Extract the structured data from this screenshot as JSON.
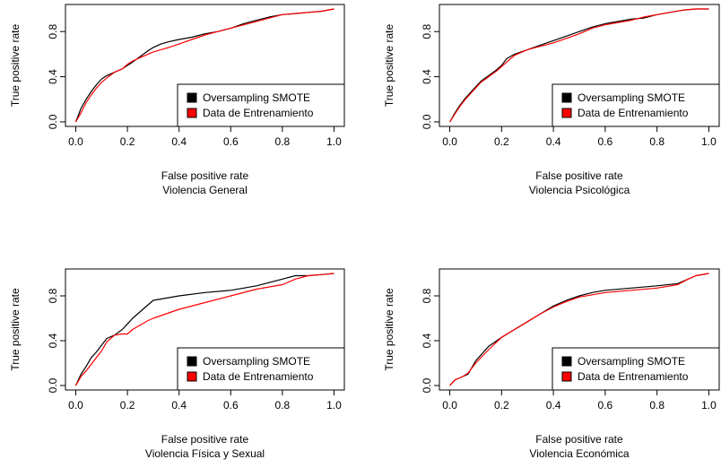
{
  "chart_data": [
    {
      "type": "line",
      "title": "Violencia General",
      "xlabel": "False positive rate",
      "ylabel": "True positive rate",
      "xlim": [
        0,
        1
      ],
      "ylim": [
        0,
        1
      ],
      "x_ticks": [
        "0.0",
        "0.2",
        "0.4",
        "0.6",
        "0.8",
        "1.0"
      ],
      "y_ticks": [
        "0.0",
        "0.4",
        "0.8"
      ],
      "grid": false,
      "legend_position": "bottom-right",
      "series": [
        {
          "name": "Oversampling SMOTE",
          "color": "#000000",
          "x": [
            0,
            0.02,
            0.04,
            0.06,
            0.08,
            0.1,
            0.12,
            0.15,
            0.18,
            0.2,
            0.22,
            0.25,
            0.28,
            0.3,
            0.33,
            0.36,
            0.4,
            0.45,
            0.5,
            0.55,
            0.6,
            0.65,
            0.7,
            0.75,
            0.8,
            0.85,
            0.9,
            0.95,
            1.0
          ],
          "y": [
            0,
            0.12,
            0.2,
            0.27,
            0.33,
            0.38,
            0.41,
            0.44,
            0.47,
            0.5,
            0.53,
            0.58,
            0.63,
            0.66,
            0.69,
            0.71,
            0.73,
            0.75,
            0.78,
            0.8,
            0.83,
            0.87,
            0.9,
            0.93,
            0.95,
            0.96,
            0.97,
            0.98,
            1.0
          ]
        },
        {
          "name": "Data de Entrenamiento",
          "color": "#ff0000",
          "x": [
            0,
            0.02,
            0.04,
            0.06,
            0.08,
            0.1,
            0.12,
            0.15,
            0.18,
            0.2,
            0.22,
            0.25,
            0.28,
            0.3,
            0.33,
            0.36,
            0.4,
            0.45,
            0.5,
            0.55,
            0.6,
            0.65,
            0.7,
            0.75,
            0.8,
            0.85,
            0.9,
            0.95,
            1.0
          ],
          "y": [
            0,
            0.08,
            0.17,
            0.24,
            0.3,
            0.35,
            0.39,
            0.44,
            0.47,
            0.51,
            0.54,
            0.57,
            0.6,
            0.62,
            0.64,
            0.66,
            0.69,
            0.73,
            0.77,
            0.8,
            0.83,
            0.86,
            0.89,
            0.92,
            0.95,
            0.96,
            0.97,
            0.98,
            1.0
          ]
        }
      ]
    },
    {
      "type": "line",
      "title": "Violencia Psicológica",
      "xlabel": "False positive rate",
      "ylabel": "True positive rate",
      "xlim": [
        0,
        1
      ],
      "ylim": [
        0,
        1
      ],
      "x_ticks": [
        "0.0",
        "0.2",
        "0.4",
        "0.6",
        "0.8",
        "1.0"
      ],
      "y_ticks": [
        "0.0",
        "0.4",
        "0.8"
      ],
      "grid": false,
      "legend_position": "bottom-right",
      "series": [
        {
          "name": "Oversampling SMOTE",
          "color": "#000000",
          "x": [
            0,
            0.02,
            0.04,
            0.06,
            0.08,
            0.1,
            0.12,
            0.15,
            0.18,
            0.2,
            0.22,
            0.25,
            0.3,
            0.35,
            0.4,
            0.45,
            0.5,
            0.55,
            0.6,
            0.65,
            0.7,
            0.75,
            0.8,
            0.85,
            0.9,
            0.95,
            1.0
          ],
          "y": [
            0,
            0.08,
            0.15,
            0.21,
            0.26,
            0.31,
            0.36,
            0.41,
            0.46,
            0.5,
            0.56,
            0.6,
            0.64,
            0.68,
            0.72,
            0.76,
            0.8,
            0.84,
            0.87,
            0.89,
            0.91,
            0.92,
            0.95,
            0.97,
            0.99,
            1.0,
            1.0
          ]
        },
        {
          "name": "Data de Entrenamiento",
          "color": "#ff0000",
          "x": [
            0,
            0.02,
            0.04,
            0.06,
            0.08,
            0.1,
            0.12,
            0.15,
            0.18,
            0.2,
            0.22,
            0.25,
            0.3,
            0.35,
            0.4,
            0.45,
            0.5,
            0.55,
            0.6,
            0.65,
            0.7,
            0.75,
            0.8,
            0.85,
            0.9,
            0.95,
            1.0
          ],
          "y": [
            0,
            0.07,
            0.14,
            0.2,
            0.25,
            0.3,
            0.35,
            0.4,
            0.45,
            0.49,
            0.53,
            0.59,
            0.64,
            0.67,
            0.7,
            0.74,
            0.78,
            0.83,
            0.86,
            0.88,
            0.9,
            0.93,
            0.95,
            0.97,
            0.99,
            1.0,
            1.0
          ]
        }
      ]
    },
    {
      "type": "line",
      "title": "Violencia Física y Sexual",
      "xlabel": "False positive rate",
      "ylabel": "True positive rate",
      "xlim": [
        0,
        1
      ],
      "ylim": [
        0,
        1
      ],
      "x_ticks": [
        "0.0",
        "0.2",
        "0.4",
        "0.6",
        "0.8",
        "1.0"
      ],
      "y_ticks": [
        "0.0",
        "0.4",
        "0.8"
      ],
      "grid": false,
      "legend_position": "bottom-right",
      "series": [
        {
          "name": "Oversampling SMOTE",
          "color": "#000000",
          "x": [
            0,
            0.02,
            0.04,
            0.06,
            0.08,
            0.1,
            0.12,
            0.15,
            0.18,
            0.2,
            0.22,
            0.25,
            0.28,
            0.3,
            0.35,
            0.4,
            0.5,
            0.6,
            0.7,
            0.8,
            0.85,
            0.9,
            0.95,
            1.0
          ],
          "y": [
            0,
            0.1,
            0.17,
            0.25,
            0.3,
            0.36,
            0.42,
            0.45,
            0.5,
            0.55,
            0.6,
            0.66,
            0.72,
            0.76,
            0.78,
            0.8,
            0.83,
            0.85,
            0.89,
            0.95,
            0.98,
            0.98,
            0.99,
            1.0
          ]
        },
        {
          "name": "Data de Entrenamiento",
          "color": "#ff0000",
          "x": [
            0,
            0.02,
            0.04,
            0.06,
            0.08,
            0.1,
            0.12,
            0.15,
            0.18,
            0.2,
            0.22,
            0.25,
            0.28,
            0.3,
            0.35,
            0.4,
            0.5,
            0.6,
            0.7,
            0.8,
            0.85,
            0.9,
            0.95,
            1.0
          ],
          "y": [
            0,
            0.08,
            0.13,
            0.19,
            0.25,
            0.31,
            0.39,
            0.45,
            0.46,
            0.46,
            0.5,
            0.54,
            0.58,
            0.6,
            0.64,
            0.68,
            0.74,
            0.8,
            0.86,
            0.9,
            0.95,
            0.98,
            0.99,
            1.0
          ]
        }
      ]
    },
    {
      "type": "line",
      "title": "Violencia Económica",
      "xlabel": "False positive rate",
      "ylabel": "True positive rate",
      "xlim": [
        0,
        1
      ],
      "ylim": [
        0,
        1
      ],
      "x_ticks": [
        "0.0",
        "0.2",
        "0.4",
        "0.6",
        "0.8",
        "1.0"
      ],
      "y_ticks": [
        "0.0",
        "0.4",
        "0.8"
      ],
      "grid": false,
      "legend_position": "bottom-right",
      "series": [
        {
          "name": "Oversampling SMOTE",
          "color": "#000000",
          "x": [
            0,
            0.02,
            0.05,
            0.07,
            0.1,
            0.15,
            0.2,
            0.25,
            0.3,
            0.35,
            0.4,
            0.45,
            0.5,
            0.55,
            0.6,
            0.7,
            0.8,
            0.88,
            0.92,
            0.95,
            1.0
          ],
          "y": [
            0,
            0.05,
            0.08,
            0.1,
            0.22,
            0.35,
            0.43,
            0.5,
            0.57,
            0.64,
            0.71,
            0.76,
            0.8,
            0.83,
            0.85,
            0.87,
            0.89,
            0.91,
            0.95,
            0.98,
            1.0
          ]
        },
        {
          "name": "Data de Entrenamiento",
          "color": "#ff0000",
          "x": [
            0,
            0.02,
            0.05,
            0.07,
            0.1,
            0.15,
            0.2,
            0.25,
            0.3,
            0.35,
            0.4,
            0.45,
            0.5,
            0.55,
            0.6,
            0.7,
            0.8,
            0.88,
            0.92,
            0.95,
            1.0
          ],
          "y": [
            0,
            0.05,
            0.08,
            0.11,
            0.2,
            0.32,
            0.43,
            0.5,
            0.57,
            0.64,
            0.7,
            0.75,
            0.79,
            0.81,
            0.83,
            0.85,
            0.87,
            0.9,
            0.95,
            0.98,
            1.0
          ]
        }
      ]
    }
  ]
}
